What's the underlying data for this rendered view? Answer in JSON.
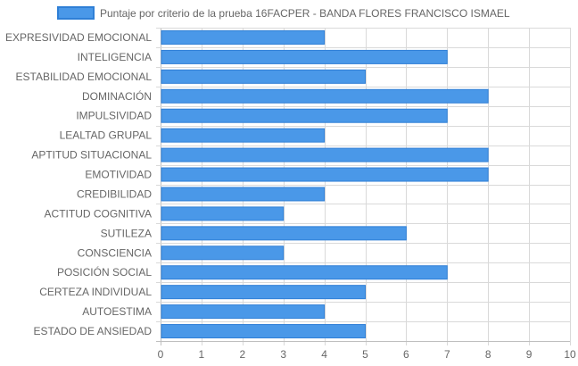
{
  "chart_data": {
    "type": "bar",
    "orientation": "horizontal",
    "categories": [
      "EXPRESIVIDAD EMOCIONAL",
      "INTELIGENCIA",
      "ESTABILIDAD EMOCIONAL",
      "DOMINACIÓN",
      "IMPULSIVIDAD",
      "LEALTAD GRUPAL",
      "APTITUD SITUACIONAL",
      "EMOTIVIDAD",
      "CREDIBILIDAD",
      "ACTITUD COGNITIVA",
      "SUTILEZA",
      "CONSCIENCIA",
      "POSICIÓN SOCIAL",
      "CERTEZA INDIVIDUAL",
      "AUTOESTIMA",
      "ESTADO DE ANSIEDAD"
    ],
    "series": [
      {
        "name": "Puntaje por criterio de la prueba 16FACPER - BANDA FLORES FRANCISCO ISMAEL",
        "values": [
          4,
          7,
          5,
          8,
          7,
          4,
          8,
          8,
          4,
          3,
          6,
          3,
          7,
          5,
          4,
          5
        ]
      }
    ],
    "xlim": [
      0,
      10
    ],
    "xticks": [
      "0",
      "1",
      "2",
      "3",
      "4",
      "5",
      "6",
      "7",
      "8",
      "9",
      "10"
    ],
    "grid": true,
    "legend_position": "top",
    "colors": {
      "bar_fill": "#4a98e8",
      "bar_border": "#2f7fd6",
      "grid": "#d9d9d9",
      "text": "#666666"
    }
  }
}
